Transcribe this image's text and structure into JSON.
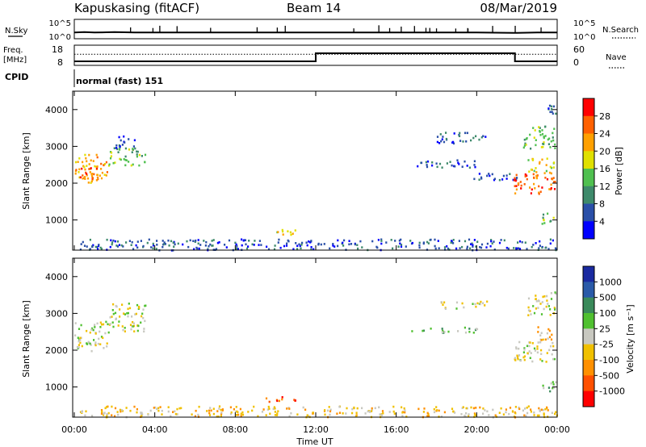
{
  "header": {
    "station": "Kapuskasing (fitACF)",
    "beam": "Beam 14",
    "date": "08/Mar/2019"
  },
  "top_panels": {
    "nsky_label": "N.Sky",
    "nsky_ticks": [
      "10^5",
      "10^0"
    ],
    "nsearch_label": "N.Search",
    "nsearch_ticks": [
      "10^5",
      "10^0"
    ],
    "freq_label_1": "Freq.",
    "freq_label_2": "[MHz]",
    "freq_ticks": [
      "18",
      "8"
    ],
    "nave_label": "Nave",
    "nave_ticks": [
      "60",
      "0"
    ],
    "cpid_label": "CPID",
    "cpid_value": "normal (fast) 151"
  },
  "colors": {
    "power_scale": [
      "#0000ff",
      "#2a4fa8",
      "#3e8a6b",
      "#50c050",
      "#e0e000",
      "#ffa000",
      "#ff6000",
      "#ff0000"
    ],
    "velocity_scale": [
      "#1a2aa0",
      "#2a5aa8",
      "#3a8a5a",
      "#50c030",
      "#c8c8c0",
      "#f0c000",
      "#ff9000",
      "#ff5000",
      "#ff0000"
    ],
    "ground_scatter": "#c0c0b8"
  },
  "chart_data": [
    {
      "type": "line",
      "name": "N.Sky / N.Search noise",
      "x": [
        0,
        0.5,
        1,
        2,
        3,
        4,
        6,
        8,
        10,
        12,
        14,
        16,
        18,
        20,
        22,
        23,
        24
      ],
      "y_log10": [
        1.6,
        1.7,
        1.6,
        1.7,
        1.6,
        1.6,
        1.6,
        1.6,
        1.6,
        1.6,
        1.6,
        1.6,
        1.6,
        1.6,
        1.5,
        1.6,
        1.6
      ],
      "ylim_log10": [
        0,
        5
      ],
      "xlim": [
        0,
        24
      ]
    },
    {
      "type": "line",
      "name": "Freq. / Nave",
      "x": [
        0,
        12,
        12,
        21.9,
        21.9,
        24
      ],
      "freq_mhz": [
        10,
        10,
        14,
        14,
        10,
        10
      ],
      "nave_ref": 33,
      "ylim": [
        8,
        18
      ],
      "xlim": [
        0,
        24
      ]
    },
    {
      "type": "heatmap",
      "name": "Power",
      "xlabel": "",
      "ylabel": "Slant Range [km]",
      "colorbar_label": "Power [dB]",
      "colorbar_ticks": [
        "28",
        "24",
        "20",
        "16",
        "12",
        "8",
        "4"
      ],
      "colorbar_range": [
        0,
        30
      ],
      "xlim": [
        0,
        24
      ],
      "ylim": [
        180,
        4500
      ],
      "yticks": [
        "4000",
        "3000",
        "2000",
        "1000"
      ],
      "regions": [
        {
          "x0": 0,
          "x1": 1.6,
          "y0": 2000,
          "y1": 2800,
          "level": 5
        },
        {
          "x0": 0,
          "x1": 1.2,
          "y0": 2150,
          "y1": 2550,
          "level": 6
        },
        {
          "x0": 1.6,
          "x1": 3.5,
          "y0": 2500,
          "y1": 3000,
          "level": 3
        },
        {
          "x0": 2.0,
          "x1": 3.0,
          "y0": 2950,
          "y1": 3300,
          "level": 1
        },
        {
          "x0": 9.5,
          "x1": 11.0,
          "y0": 620,
          "y1": 760,
          "level": 4
        },
        {
          "x0": 18.0,
          "x1": 20.5,
          "y0": 3100,
          "y1": 3400,
          "level": 1
        },
        {
          "x0": 16.5,
          "x1": 20.0,
          "y0": 2450,
          "y1": 2650,
          "level": 1
        },
        {
          "x0": 19.5,
          "x1": 22.0,
          "y0": 2100,
          "y1": 2300,
          "level": 1
        },
        {
          "x0": 21.8,
          "x1": 23.9,
          "y0": 1700,
          "y1": 2300,
          "level": 6
        },
        {
          "x0": 22.5,
          "x1": 23.9,
          "y0": 2300,
          "y1": 2700,
          "level": 4
        },
        {
          "x0": 22.3,
          "x1": 23.9,
          "y0": 2950,
          "y1": 3600,
          "level": 3
        },
        {
          "x0": 23.2,
          "x1": 23.9,
          "y0": 900,
          "y1": 1200,
          "level": 3
        },
        {
          "x0": 23.5,
          "x1": 23.9,
          "y0": 3900,
          "y1": 4200,
          "level": 1
        },
        {
          "x0": 0.2,
          "x1": 24,
          "y0": 200,
          "y1": 500,
          "level": 1
        }
      ]
    },
    {
      "type": "heatmap",
      "name": "Velocity",
      "xlabel": "Time UT",
      "ylabel": "Slant Range [km]",
      "colorbar_label": "Velocity [m s⁻¹]",
      "colorbar_ticks": [
        "1000",
        "500",
        "100",
        "25",
        "-25",
        "-100",
        "-500",
        "-1000"
      ],
      "colorbar_range": [
        -1000,
        1000
      ],
      "xlim": [
        0,
        24
      ],
      "ylim": [
        180,
        4500
      ],
      "yticks": [
        "4000",
        "3000",
        "2000",
        "1000"
      ],
      "xticks": [
        "00:00",
        "04:00",
        "08:00",
        "12:00",
        "16:00",
        "20:00",
        "00:00"
      ],
      "regions": [
        {
          "x0": 0,
          "x1": 1.6,
          "y0": 2000,
          "y1": 2800,
          "level": 4
        },
        {
          "x0": 1.6,
          "x1": 3.5,
          "y0": 2500,
          "y1": 3300,
          "level": 4
        },
        {
          "x0": 9.5,
          "x1": 11.0,
          "y0": 620,
          "y1": 760,
          "level": 7
        },
        {
          "x0": 18.0,
          "x1": 20.5,
          "y0": 3150,
          "y1": 3350,
          "level": 4
        },
        {
          "x0": 16.5,
          "x1": 20.0,
          "y0": 2500,
          "y1": 2650,
          "level": 3
        },
        {
          "x0": 21.8,
          "x1": 23.9,
          "y0": 1700,
          "y1": 2300,
          "level": 4
        },
        {
          "x0": 22.5,
          "x1": 23.9,
          "y0": 2950,
          "y1": 3600,
          "level": 4
        },
        {
          "x0": 23.0,
          "x1": 23.9,
          "y0": 2300,
          "y1": 2700,
          "level": 5
        },
        {
          "x0": 23.2,
          "x1": 23.9,
          "y0": 900,
          "y1": 1200,
          "level": 3
        },
        {
          "x0": 0.2,
          "x1": 24,
          "y0": 200,
          "y1": 500,
          "level": 5
        }
      ]
    }
  ]
}
